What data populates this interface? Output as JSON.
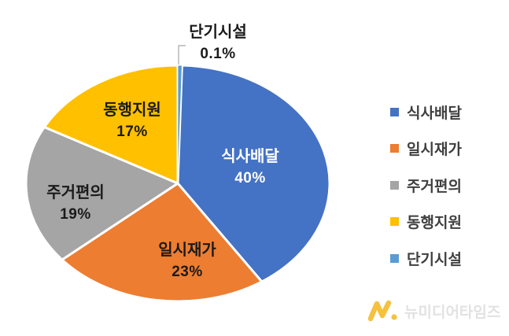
{
  "chart_data": {
    "type": "pie",
    "title": "",
    "direction": "clockwise",
    "start_angle_deg": 0,
    "legend_position": "right",
    "slice_separator_color": "#ffffff",
    "leader_line_color": "#a6a6a6",
    "slices": [
      {
        "label": "단기시설",
        "value": 0.1,
        "display_value": "0.1%",
        "color": "#5B9BD5"
      },
      {
        "label": "식사배달",
        "value": 40,
        "display_value": "40%",
        "color": "#4472C4"
      },
      {
        "label": "일시재가",
        "value": 23,
        "display_value": "23%",
        "color": "#ED7D31"
      },
      {
        "label": "주거편의",
        "value": 19,
        "display_value": "19%",
        "color": "#A5A5A5"
      },
      {
        "label": "동행지원",
        "value": 17,
        "display_value": "17%",
        "color": "#FFC000"
      }
    ],
    "legend": {
      "items": [
        {
          "label": "식사배달",
          "color": "#4472C4"
        },
        {
          "label": "일시재가",
          "color": "#ED7D31"
        },
        {
          "label": "주거편의",
          "color": "#A5A5A5"
        },
        {
          "label": "동행지원",
          "color": "#FFC000"
        },
        {
          "label": "단기시설",
          "color": "#5B9BD5"
        }
      ]
    }
  },
  "watermark": {
    "text": "뉴미디어타임즈",
    "logo": "newmediatimes-logo",
    "logo_color": "#F6C13D",
    "text_color": "#E2E2E2"
  }
}
